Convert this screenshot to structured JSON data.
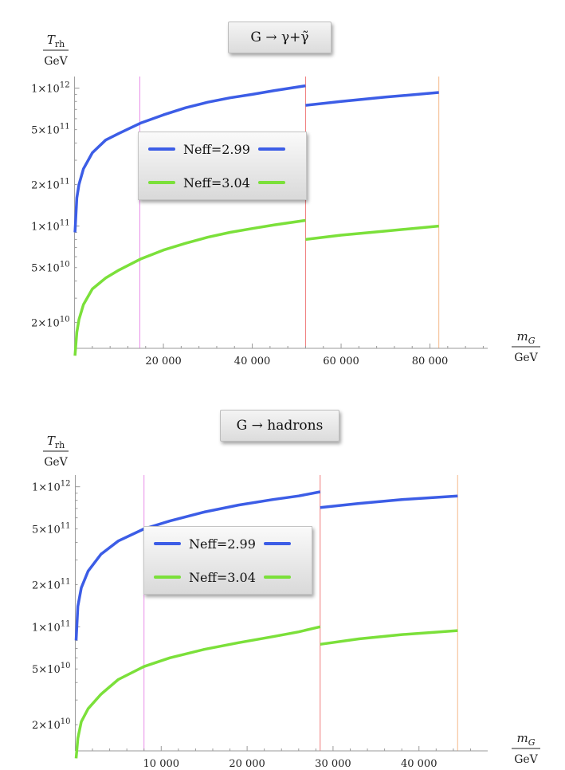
{
  "chart_data": [
    {
      "type": "line",
      "title": "G → γ+γ̃",
      "ylabel_num": "T",
      "ylabel_sub": "rh",
      "ylabel_den": "GeV",
      "xlabel_num": "m",
      "xlabel_sub": "G",
      "xlabel_den": "GeV",
      "yscale": "log",
      "ylim": [
        13000000000,
        1150000000000
      ],
      "xlim": [
        -1000,
        93000
      ],
      "xticks": [
        20000,
        40000,
        60000,
        80000
      ],
      "xtick_labels": [
        "20 000",
        "40 000",
        "60 000",
        "80 000"
      ],
      "yticks": [
        {
          "value": 1000000000000.0,
          "mant": "1",
          "exp": "12"
        },
        {
          "value": 500000000000.0,
          "mant": "5",
          "exp": "11"
        },
        {
          "value": 200000000000.0,
          "mant": "2",
          "exp": "11"
        },
        {
          "value": 100000000000.0,
          "mant": "1",
          "exp": "11"
        },
        {
          "value": 50000000000.0,
          "mant": "5",
          "exp": "10"
        },
        {
          "value": 20000000000.0,
          "mant": "2",
          "exp": "10"
        }
      ],
      "vlines": [
        {
          "x": 14700,
          "color": "#e98fe9"
        },
        {
          "x": 52000,
          "color": "#ef7b7b"
        },
        {
          "x": 82000,
          "color": "#f5b98a"
        }
      ],
      "series": [
        {
          "name": "Neff=2.99",
          "color": "#3c5de6",
          "segments": [
            {
              "x": [
                100,
                500,
                1000,
                2000,
                4000,
                7000,
                10000,
                15000,
                20000,
                25000,
                30000,
                35000,
                40000,
                45000,
                52000
              ],
              "y": [
                90000000000,
                160000000000,
                200000000000,
                260000000000,
                340000000000,
                420000000000,
                470000000000,
                560000000000,
                640000000000,
                720000000000,
                790000000000,
                850000000000,
                900000000000,
                960000000000,
                1040000000000
              ]
            },
            {
              "x": [
                52000,
                60000,
                70000,
                82000
              ],
              "y": [
                750000000000,
                800000000000,
                860000000000,
                930000000000
              ]
            }
          ]
        },
        {
          "name": "Neff=3.04",
          "color": "#7be03a",
          "segments": [
            {
              "x": [
                100,
                500,
                1000,
                2000,
                4000,
                7000,
                10000,
                15000,
                20000,
                25000,
                30000,
                35000,
                40000,
                45000,
                52000
              ],
              "y": [
                11500000000,
                17000000000,
                21000000000,
                27000000000,
                35000000000,
                42000000000,
                48000000000,
                58000000000,
                67000000000,
                75000000000,
                83000000000,
                90000000000,
                96000000000,
                102000000000,
                110000000000
              ]
            },
            {
              "x": [
                52000,
                60000,
                70000,
                82000
              ],
              "y": [
                80000000000,
                86000000000,
                92000000000,
                100000000000
              ]
            }
          ]
        }
      ]
    },
    {
      "type": "line",
      "title": "G → hadrons",
      "ylabel_num": "T",
      "ylabel_sub": "rh",
      "ylabel_den": "GeV",
      "xlabel_num": "m",
      "xlabel_sub": "G",
      "xlabel_den": "GeV",
      "yscale": "log",
      "ylim": [
        13000000000,
        1150000000000
      ],
      "xlim": [
        -600,
        48000
      ],
      "xticks": [
        10000,
        20000,
        30000,
        40000
      ],
      "xtick_labels": [
        "10 000",
        "20 000",
        "30 000",
        "40 000"
      ],
      "yticks": [
        {
          "value": 1000000000000.0,
          "mant": "1",
          "exp": "12"
        },
        {
          "value": 500000000000.0,
          "mant": "5",
          "exp": "11"
        },
        {
          "value": 200000000000.0,
          "mant": "2",
          "exp": "11"
        },
        {
          "value": 100000000000.0,
          "mant": "1",
          "exp": "11"
        },
        {
          "value": 50000000000.0,
          "mant": "5",
          "exp": "10"
        },
        {
          "value": 20000000000.0,
          "mant": "2",
          "exp": "10"
        }
      ],
      "vlines": [
        {
          "x": 8000,
          "color": "#e98fe9"
        },
        {
          "x": 28500,
          "color": "#ef7b7b"
        },
        {
          "x": 44500,
          "color": "#f5b98a"
        }
      ],
      "series": [
        {
          "name": "Neff=2.99",
          "color": "#3c5de6",
          "segments": [
            {
              "x": [
                100,
                300,
                700,
                1500,
                3000,
                5000,
                8000,
                11000,
                15000,
                19000,
                23000,
                26000,
                28500
              ],
              "y": [
                80000000000,
                140000000000,
                190000000000,
                250000000000,
                330000000000,
                410000000000,
                500000000000,
                570000000000,
                660000000000,
                740000000000,
                810000000000,
                860000000000,
                920000000000
              ]
            },
            {
              "x": [
                28500,
                33000,
                38000,
                44500
              ],
              "y": [
                710000000000,
                760000000000,
                810000000000,
                860000000000
              ]
            }
          ]
        },
        {
          "name": "Neff=3.04",
          "color": "#7be03a",
          "segments": [
            {
              "x": [
                100,
                300,
                700,
                1500,
                3000,
                5000,
                8000,
                11000,
                15000,
                19000,
                23000,
                26000,
                28500
              ],
              "y": [
                11500000000,
                16000000000,
                21000000000,
                26000000000,
                33000000000,
                42000000000,
                52000000000,
                60000000000,
                69000000000,
                77000000000,
                85000000000,
                92000000000,
                100000000000
              ]
            },
            {
              "x": [
                28500,
                33000,
                38000,
                44500
              ],
              "y": [
                75000000000,
                82000000000,
                88000000000,
                94000000000
              ]
            }
          ]
        }
      ]
    }
  ]
}
